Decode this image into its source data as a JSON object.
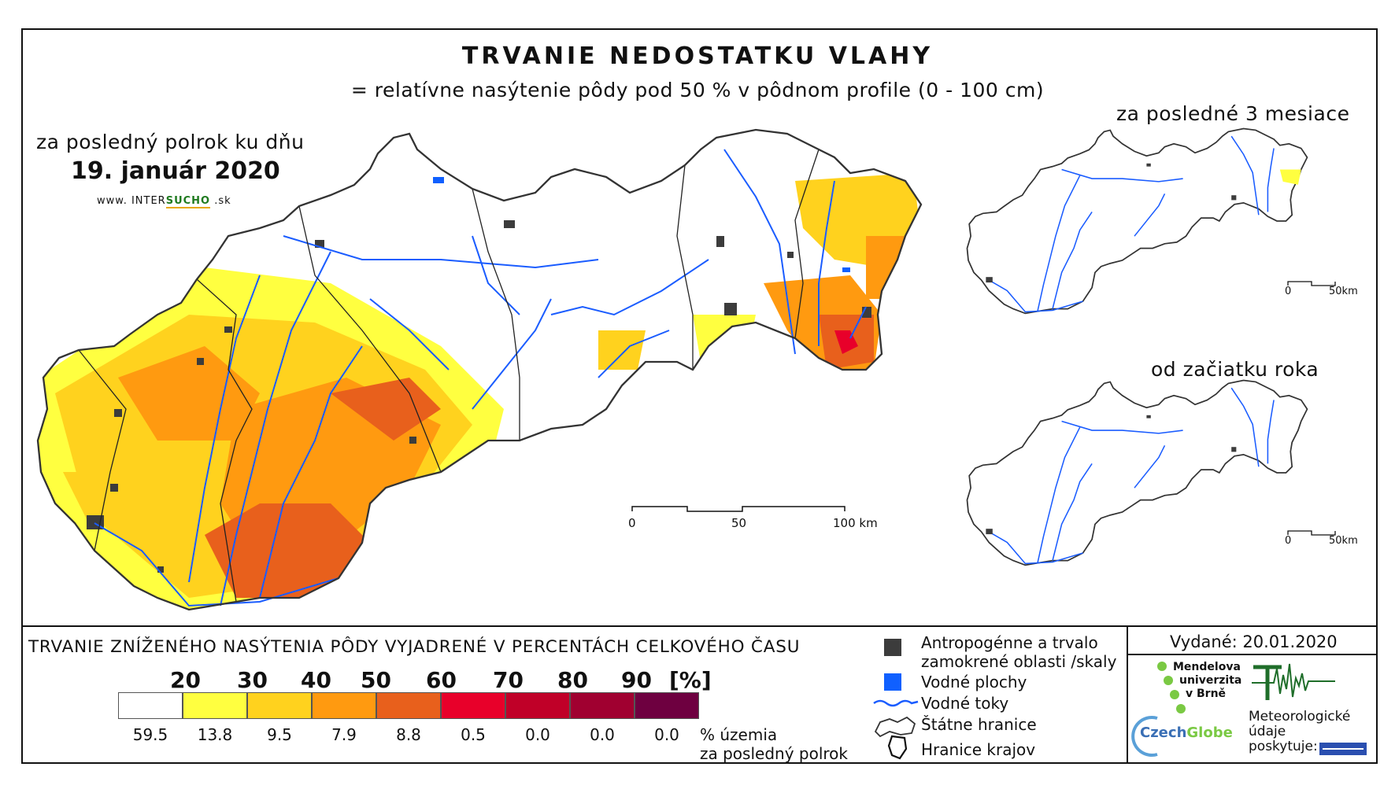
{
  "title": "TRVANIE NEDOSTATKU VLAHY",
  "subtitle": "= relatívne nasýtenie pôdy pod 50 % v pôdnom profile (0 - 100 cm)",
  "main_map": {
    "period_label": "za posledný polrok ku dňu",
    "date": "19. január 2020",
    "website_prefix": "www. INTER",
    "website_accent": "SUCHO",
    "website_suffix": " .sk",
    "scalebar": {
      "labels": [
        "0",
        "50",
        "100 km"
      ]
    }
  },
  "inset_top": {
    "title": "za posledné 3 mesiace",
    "scalebar": {
      "labels": [
        "0",
        "50km"
      ]
    }
  },
  "inset_bottom": {
    "title": "od začiatku roka",
    "scalebar": {
      "labels": [
        "0",
        "50km"
      ]
    }
  },
  "legend": {
    "title": "TRVANIE ZNÍŽENÉHO NASÝTENIA PÔDY VYJADRENÉ V PERCENTÁCH CELKOVÉHO ČASU",
    "thresholds": [
      "20",
      "30",
      "40",
      "50",
      "60",
      "70",
      "80",
      "90",
      "[%]"
    ],
    "classes": [
      {
        "color": "#ffffff",
        "share": "59.5"
      },
      {
        "color": "#ffff40",
        "share": "13.8"
      },
      {
        "color": "#ffd21e",
        "share": "9.5"
      },
      {
        "color": "#ff9a10",
        "share": "7.9"
      },
      {
        "color": "#e8601c",
        "share": "8.8"
      },
      {
        "color": "#e8002a",
        "share": "0.5"
      },
      {
        "color": "#c00028",
        "share": "0.0"
      },
      {
        "color": "#a00030",
        "share": "0.0"
      },
      {
        "color": "#6e0040",
        "share": "0.0"
      }
    ],
    "share_note_line1": "% územia",
    "share_note_line2": "za posledný polrok",
    "symbols": [
      {
        "icon": "gray-square",
        "line1": "Antropogénne a trvalo",
        "line2": "zamokrené oblasti /skaly",
        "color": "#3c3c3c"
      },
      {
        "icon": "blue-square",
        "line1": "Vodné plochy",
        "color": "#1060ff"
      },
      {
        "icon": "river-line",
        "line1": "Vodné toky",
        "color": "#1a5cff"
      },
      {
        "icon": "state-border",
        "line1": "Štátne hranice"
      },
      {
        "icon": "region-border",
        "line1": "Hranice krajov"
      }
    ]
  },
  "issued": "Vydané: 20.01.2020",
  "organizations": {
    "mendelu": [
      "Mendelova",
      "univerzita",
      "v Brně"
    ],
    "czechglobe_a": "Czech",
    "czechglobe_b": "Globe",
    "meteo": [
      "Meteorologické",
      "údaje",
      "poskytuje:"
    ]
  },
  "colors": {
    "river": "#1a5cff",
    "urban": "#3c3c3c",
    "water": "#1060ff",
    "frame": "#111111"
  }
}
